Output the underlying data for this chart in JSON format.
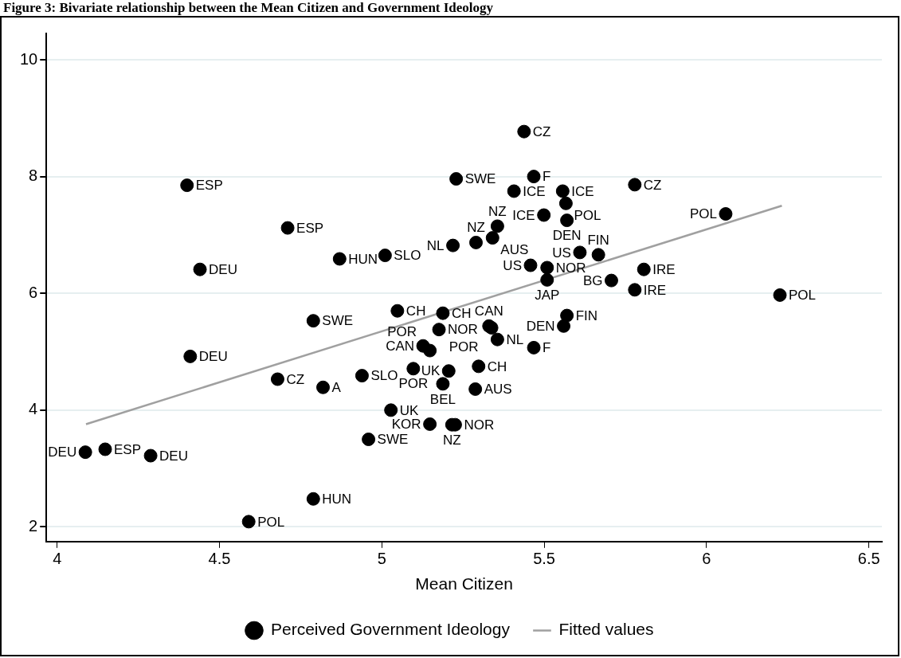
{
  "chart_data": {
    "type": "scatter",
    "title": "Figure 3: Bivariate relationship between the Mean Citizen and Government Ideology",
    "xlabel": "Mean Citizen",
    "xlim": [
      3.967,
      6.54
    ],
    "xticks": [
      4,
      {
        "value": 4.5,
        "label": "4.5"
      },
      5,
      {
        "value": 5.5,
        "label": "5.5"
      },
      6,
      {
        "value": 6.5,
        "label": "6.5"
      }
    ],
    "ylim": [
      1.75,
      10.45
    ],
    "yticks": [
      2,
      4,
      6,
      8,
      10
    ],
    "grid": "y",
    "legend": "bottom",
    "marker": "circle",
    "series": [
      {
        "name": "Perceived Government Ideology",
        "type": "scatter",
        "color": "#000000",
        "x": [
          5.438,
          4.4,
          5.229,
          5.468,
          5.407,
          5.557,
          5.779,
          5.567,
          4.71,
          5.499,
          5.57,
          5.356,
          5.341,
          5.29,
          5.219,
          4.87,
          5.01,
          4.44,
          5.61,
          5.667,
          5.458,
          5.509,
          5.509,
          5.707,
          5.807,
          5.779,
          6.059,
          6.226,
          5.048,
          5.188,
          4.789,
          5.57,
          5.56,
          5.176,
          5.33,
          5.338,
          5.356,
          5.468,
          5.127,
          5.148,
          4.41,
          4.679,
          4.819,
          4.939,
          5.097,
          5.206,
          5.298,
          5.188,
          5.288,
          5.028,
          5.148,
          5.216,
          5.226,
          4.959,
          4.087,
          4.148,
          4.288,
          4.789,
          4.59
        ],
        "values": [
          8.77,
          7.85,
          7.96,
          8.0,
          7.75,
          7.75,
          7.86,
          7.54,
          7.12,
          7.34,
          7.25,
          7.15,
          6.95,
          6.87,
          6.82,
          6.59,
          6.65,
          6.41,
          6.7,
          6.66,
          6.48,
          6.44,
          6.23,
          6.22,
          6.41,
          6.06,
          7.36,
          5.97,
          5.7,
          5.66,
          5.53,
          5.62,
          5.44,
          5.38,
          5.44,
          5.41,
          5.21,
          5.07,
          5.1,
          5.02,
          4.92,
          4.53,
          4.39,
          4.59,
          4.71,
          4.67,
          4.75,
          4.45,
          4.36,
          4.0,
          3.76,
          3.75,
          3.75,
          3.5,
          3.28,
          3.33,
          3.22,
          2.48,
          2.09
        ],
        "value_labels": [
          "CZ",
          "ESP",
          "SWE",
          "F",
          "ICE",
          "ICE",
          "CZ",
          "POL",
          "ESP",
          "ICE",
          "DEN",
          "NZ",
          "AUS",
          "NZ",
          "NL",
          "HUN",
          "SLO",
          "DEU",
          "US",
          "FIN",
          "US",
          "NOR",
          "JAP",
          "BG",
          "IRE",
          "IRE",
          "POL",
          "POL",
          "CH",
          "CH",
          "SWE",
          "FIN",
          "DEN",
          "NOR",
          "CAN",
          "POR",
          "NL",
          "F",
          "CAN",
          "POR",
          "DEU",
          "CZ",
          "A",
          "SLO",
          "POR",
          "UK",
          "CH",
          "BEL",
          "AUS",
          "UK",
          "KOR",
          "NZ",
          "NOR",
          "SWE",
          "DEU",
          "ESP",
          "DEU",
          "HUN",
          "POL"
        ]
      },
      {
        "name": "Fitted values",
        "type": "line",
        "color": "#a0a0a0",
        "marker": "none",
        "line_style": "solid",
        "x": [
          4.089,
          6.232
        ],
        "values": [
          3.76,
          7.5
        ]
      }
    ]
  }
}
